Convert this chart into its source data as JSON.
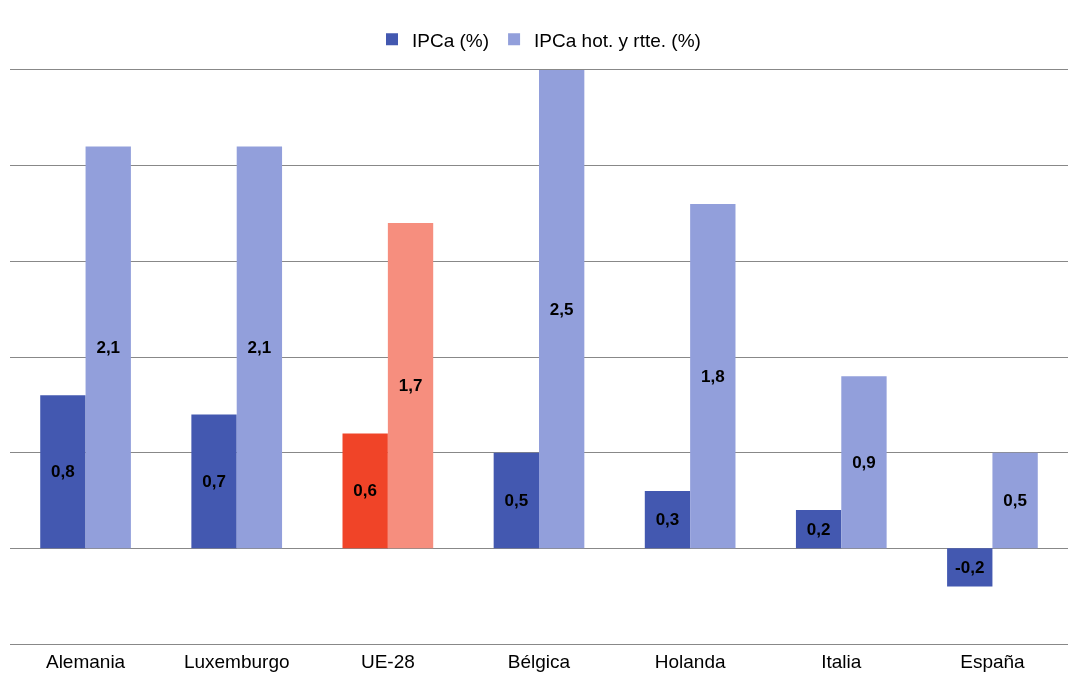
{
  "chart_data": {
    "type": "bar",
    "categories": [
      "Alemania",
      "Luxemburgo",
      "UE-28",
      "Bélgica",
      "Holanda",
      "Italia",
      "España"
    ],
    "series": [
      {
        "name": "IPCa (%)",
        "color": "#4358b0",
        "colors": [
          "#4358b0",
          "#4358b0",
          "#f04428",
          "#4358b0",
          "#4358b0",
          "#4358b0",
          "#4358b0"
        ],
        "values": [
          0.8,
          0.7,
          0.6,
          0.5,
          0.3,
          0.2,
          -0.2
        ],
        "value_labels": [
          "0,8",
          "0,7",
          "0,6",
          "0,5",
          "0,3",
          "0,2",
          "-0,2"
        ]
      },
      {
        "name": "IPCa hot. y rtte. (%)",
        "color": "#929fdb",
        "colors": [
          "#929fdb",
          "#929fdb",
          "#f68e7e",
          "#929fdb",
          "#929fdb",
          "#929fdb",
          "#929fdb"
        ],
        "values": [
          2.1,
          2.1,
          1.7,
          2.5,
          1.8,
          0.9,
          0.5
        ],
        "value_labels": [
          "2,1",
          "2,1",
          "1,7",
          "2,5",
          "1,8",
          "0,9",
          "0,5"
        ]
      }
    ],
    "ylim": [
      -0.5,
      2.5
    ],
    "yticks": [
      {
        "value": -0.5,
        "label": null
      },
      {
        "value": 0,
        "label": null
      },
      {
        "value": 0.5,
        "label": null
      },
      {
        "value": 1,
        "label": null
      },
      {
        "value": 1.5,
        "label": null
      },
      {
        "value": 2,
        "label": null
      },
      {
        "value": 2.5,
        "label": null
      }
    ],
    "tick_labels": "x",
    "grid": "y",
    "legend": "top"
  }
}
